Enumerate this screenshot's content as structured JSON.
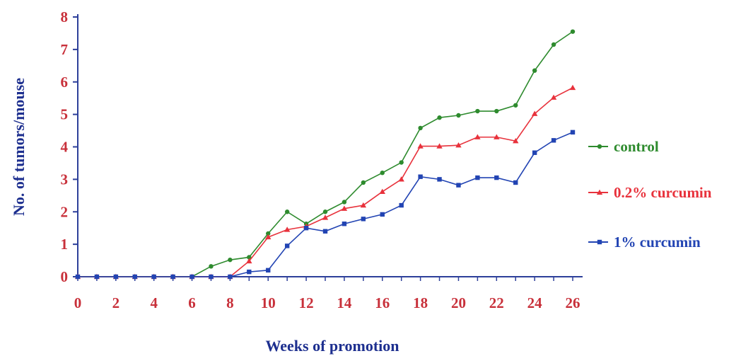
{
  "chart_data": {
    "type": "line",
    "title": "",
    "xlabel": "Weeks of promotion",
    "ylabel": "No. of tumors/mouse",
    "xlim": [
      0,
      26
    ],
    "ylim": [
      0,
      8
    ],
    "x_ticks": [
      "0",
      "2",
      "4",
      "6",
      "8",
      "10",
      "12",
      "14",
      "16",
      "18",
      "20",
      "22",
      "24",
      "26"
    ],
    "y_ticks": [
      "0",
      "1",
      "2",
      "3",
      "4",
      "5",
      "6",
      "7",
      "8"
    ],
    "grid": false,
    "legend_position": "right",
    "x": [
      0,
      1,
      2,
      3,
      4,
      5,
      6,
      7,
      8,
      9,
      10,
      11,
      12,
      13,
      14,
      15,
      16,
      17,
      18,
      19,
      20,
      21,
      22,
      23,
      24,
      25,
      26
    ],
    "series": [
      {
        "name": "control",
        "color": "#2e8b2e",
        "marker": "circle",
        "values": [
          0,
          0,
          0,
          0,
          0,
          0,
          0,
          0.32,
          0.52,
          0.6,
          1.33,
          2.0,
          1.63,
          2.0,
          2.3,
          2.9,
          3.2,
          3.52,
          4.58,
          4.9,
          4.97,
          5.1,
          5.1,
          5.28,
          6.35,
          7.15,
          7.55
        ]
      },
      {
        "name": "0.2% curcumin",
        "color": "#e8323c",
        "marker": "triangle",
        "values": [
          0,
          0,
          0,
          0,
          0,
          0,
          0,
          0,
          0,
          0.48,
          1.22,
          1.45,
          1.55,
          1.82,
          2.1,
          2.2,
          2.62,
          3.0,
          4.02,
          4.02,
          4.05,
          4.3,
          4.3,
          4.18,
          5.02,
          5.52,
          5.82
        ]
      },
      {
        "name": "1% curcumin",
        "color": "#2244b3",
        "marker": "square",
        "values": [
          0,
          0,
          0,
          0,
          0,
          0,
          0,
          0,
          0,
          0.15,
          0.2,
          0.95,
          1.5,
          1.4,
          1.63,
          1.78,
          1.92,
          2.2,
          3.08,
          3.0,
          2.82,
          3.05,
          3.05,
          2.9,
          3.82,
          4.2,
          4.45
        ]
      }
    ]
  },
  "colors": {
    "tick_labels": "#c8303a",
    "axis_line": "#2d3f9a",
    "axis_titles": "#1d2f8f"
  }
}
